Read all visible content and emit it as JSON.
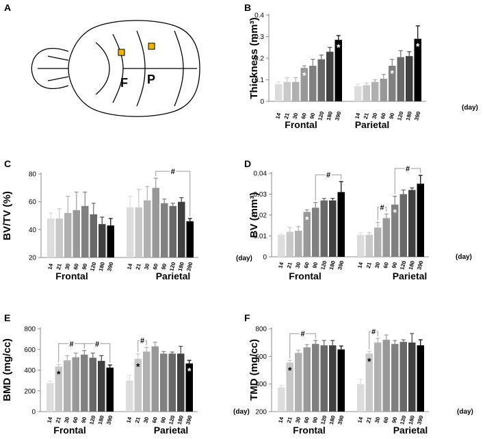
{
  "figure": {
    "colors": [
      "#dcdcdc",
      "#c8c8c8",
      "#b0b0b0",
      "#989898",
      "#808080",
      "#686868",
      "#404040",
      "#000000"
    ],
    "skull": {
      "label": "A",
      "frontal_mark": "F",
      "parietal_mark": "P",
      "marker_color": "#f0b400"
    }
  },
  "chart_data": [
    {
      "label": "B",
      "type": "bar",
      "ylabel": "Thickness (mm³)",
      "xunit": "(day)",
      "ylim": [
        0,
        0.4
      ],
      "yticks": [
        "0",
        "0.1",
        "0.2",
        "0.3",
        "0.4"
      ],
      "categories": [
        "14",
        "21",
        "30",
        "60",
        "90",
        "120",
        "180",
        "390"
      ],
      "series": [
        {
          "name": "Frontal",
          "values": [
            0.08,
            0.09,
            0.09,
            0.155,
            0.165,
            0.195,
            0.23,
            0.285
          ],
          "errors": [
            0.01,
            0.02,
            0.02,
            0.01,
            0.03,
            0.02,
            0.02,
            0.02
          ],
          "stars": [
            3,
            7
          ]
        },
        {
          "name": "Parietal",
          "values": [
            0.07,
            0.075,
            0.09,
            0.105,
            0.165,
            0.205,
            0.21,
            0.29
          ],
          "errors": [
            0.01,
            0.01,
            0.01,
            0.02,
            0.03,
            0.03,
            0.02,
            0.06
          ],
          "stars": [
            4,
            7
          ]
        }
      ],
      "brackets": []
    },
    {
      "label": "C",
      "type": "bar",
      "ylabel": "BV/TV (%)",
      "xunit": "(day)",
      "ylim": [
        20,
        80
      ],
      "yticks": [
        "20",
        "40",
        "60",
        "80"
      ],
      "categories": [
        "14",
        "21",
        "30",
        "60",
        "90",
        "120",
        "180",
        "390"
      ],
      "series": [
        {
          "name": "Frontal",
          "values": [
            48,
            48,
            52,
            54,
            57,
            51,
            44,
            43
          ],
          "errors": [
            4,
            7,
            12,
            13,
            10,
            8,
            5,
            5
          ],
          "stars": []
        },
        {
          "name": "Parietal",
          "values": [
            56,
            56,
            61,
            70,
            59,
            57,
            60,
            46
          ],
          "errors": [
            8,
            13,
            10,
            7,
            3,
            2,
            3,
            2
          ],
          "stars": []
        }
      ],
      "brackets": [
        {
          "series": 1,
          "from": 3,
          "to": 7,
          "label": "#"
        }
      ]
    },
    {
      "label": "D",
      "type": "bar",
      "ylabel": "BV (mm³)",
      "xunit": "(day)",
      "ylim": [
        0,
        0.04
      ],
      "yticks": [
        "0",
        "0.01",
        "0.02",
        "0.03",
        "0.04"
      ],
      "categories": [
        "14",
        "21",
        "30",
        "60",
        "90",
        "120",
        "180",
        "390"
      ],
      "series": [
        {
          "name": "Frontal",
          "values": [
            0.0105,
            0.012,
            0.0125,
            0.0215,
            0.0235,
            0.027,
            0.027,
            0.031
          ],
          "errors": [
            0.0005,
            0.002,
            0.002,
            0.001,
            0.0025,
            0.001,
            0.001,
            0.005
          ],
          "stars": [
            3
          ]
        },
        {
          "name": "Parietal",
          "values": [
            0.0105,
            0.0105,
            0.014,
            0.0185,
            0.025,
            0.03,
            0.032,
            0.035
          ],
          "errors": [
            0.001,
            0.001,
            0.0025,
            0.002,
            0.004,
            0.002,
            0.001,
            0.004
          ],
          "stars": [
            4
          ]
        }
      ],
      "brackets": [
        {
          "series": 0,
          "from": 4,
          "to": 7,
          "label": "#"
        },
        {
          "series": 1,
          "from": 2,
          "to": 3,
          "label": "#"
        },
        {
          "series": 1,
          "from": 4,
          "to": 7,
          "label": "#"
        }
      ]
    },
    {
      "label": "E",
      "type": "bar",
      "ylabel": "BMD (mg/cc)",
      "xunit": "(day)",
      "ylim": [
        0,
        800
      ],
      "yticks": [
        "0",
        "200",
        "400",
        "600",
        "800"
      ],
      "categories": [
        "14",
        "21",
        "30",
        "60",
        "90",
        "120",
        "180",
        "390"
      ],
      "series": [
        {
          "name": "Frontal",
          "values": [
            275,
            435,
            495,
            525,
            550,
            520,
            490,
            425
          ],
          "errors": [
            20,
            20,
            45,
            40,
            40,
            45,
            50,
            25
          ],
          "stars": [
            1
          ]
        },
        {
          "name": "Parietal",
          "values": [
            300,
            510,
            580,
            630,
            560,
            560,
            560,
            465
          ],
          "errors": [
            50,
            45,
            40,
            40,
            20,
            15,
            70,
            30
          ],
          "stars": [
            1,
            7
          ]
        }
      ],
      "brackets": [
        {
          "series": 0,
          "from": 1,
          "to": 4,
          "label": "#"
        },
        {
          "series": 0,
          "from": 4,
          "to": 7,
          "label": "#"
        },
        {
          "series": 1,
          "from": 1,
          "to": 2,
          "label": "#"
        }
      ]
    },
    {
      "label": "F",
      "type": "bar",
      "ylabel": "TMD (mg/cc)",
      "xunit": "(day)",
      "ylim": [
        200,
        800
      ],
      "yticks": [
        "200",
        "400",
        "600",
        "800"
      ],
      "categories": [
        "14",
        "21",
        "30",
        "60",
        "90",
        "120",
        "180",
        "390"
      ],
      "series": [
        {
          "name": "Frontal",
          "values": [
            375,
            555,
            625,
            665,
            690,
            680,
            680,
            650
          ],
          "errors": [
            15,
            15,
            20,
            20,
            25,
            35,
            35,
            25
          ],
          "stars": [
            1
          ]
        },
        {
          "name": "Parietal",
          "values": [
            400,
            620,
            700,
            720,
            690,
            705,
            700,
            680
          ],
          "errors": [
            35,
            15,
            30,
            35,
            25,
            15,
            65,
            40
          ],
          "stars": [
            1
          ]
        }
      ],
      "brackets": [
        {
          "series": 0,
          "from": 1,
          "to": 4,
          "label": "#"
        },
        {
          "series": 1,
          "from": 1,
          "to": 2,
          "label": "#"
        }
      ]
    }
  ]
}
